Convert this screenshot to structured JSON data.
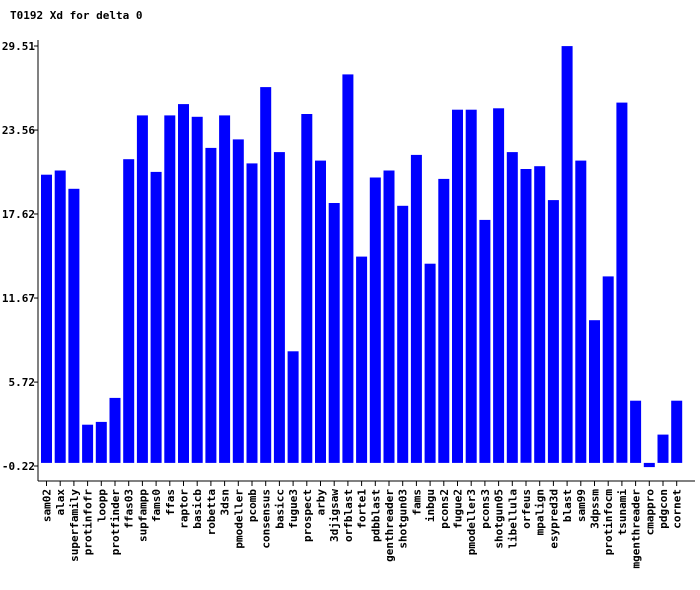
{
  "chart_data": {
    "type": "bar",
    "title": "T0192 Xd for delta 0",
    "xlabel": "",
    "ylabel": "",
    "ylim": [
      -0.22,
      29.51
    ],
    "yticks": [
      "29.51",
      "23.56",
      "17.62",
      "11.67",
      "5.72",
      "-0.22"
    ],
    "bar_color": "#0000ff",
    "grid": false,
    "categories": [
      "sam02",
      "alax",
      "superfamily",
      "protinfofr",
      "loopp",
      "protfinder",
      "ffas03",
      "supfampp",
      "fams0",
      "ffas",
      "raptor",
      "basicb",
      "robetta",
      "3dsn",
      "pmodeller",
      "pcomb",
      "consensus",
      "basicc",
      "fugue3",
      "prospect",
      "arby",
      "3djigsaw",
      "orfblast",
      "forte1",
      "pdbblast",
      "genthreader",
      "shotgun03",
      "fams",
      "inbgu",
      "pcons2",
      "fugue2",
      "pmodeller3",
      "pcons3",
      "shotgun05",
      "libellula",
      "orfeus",
      "mpalign",
      "esypred3d",
      "blast",
      "sam99",
      "3dpssm",
      "protinfocm",
      "tsunami",
      "mgenthreader",
      "cmappro",
      "pdgcon",
      "cornet"
    ],
    "values": [
      20.4,
      20.7,
      19.4,
      2.7,
      2.9,
      4.6,
      21.5,
      24.6,
      20.6,
      24.6,
      25.4,
      24.5,
      22.3,
      24.6,
      22.9,
      21.2,
      26.6,
      22.0,
      7.9,
      24.7,
      21.4,
      18.4,
      27.5,
      14.6,
      20.2,
      20.7,
      18.2,
      21.8,
      14.1,
      20.1,
      25.0,
      25.0,
      17.2,
      25.1,
      22.0,
      20.8,
      21.0,
      18.6,
      29.5,
      21.4,
      10.1,
      13.2,
      25.5,
      4.4,
      -0.3,
      2.0,
      4.4
    ]
  }
}
